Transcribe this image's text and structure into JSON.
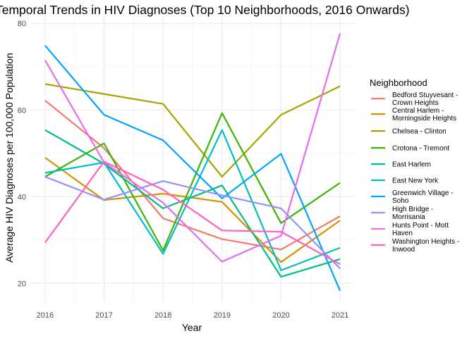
{
  "chart_data": {
    "type": "line",
    "title": "Temporal Trends in HIV Diagnoses (Top 10 Neighborhoods, 2016 Onwards)",
    "xlabel": "Year",
    "ylabel": "Average HIV Diagnoses per 100,000 Population",
    "x": [
      2016,
      2017,
      2018,
      2019,
      2020,
      2021
    ],
    "xlim": [
      2015.75,
      2021.25
    ],
    "ylim": [
      15.5,
      81.5
    ],
    "yticks": [
      20,
      40,
      60,
      80
    ],
    "grid": true,
    "legend_title": "Neighborhood",
    "legend_position": "right",
    "series": [
      {
        "name": "Bedford Stuyvesant - Crown Heights",
        "legend_lines": [
          "Bedford Stuyvesant -",
          "Crown Heights"
        ],
        "color": "#F8766D",
        "values": [
          62.2,
          51.2,
          35.0,
          30.2,
          27.8,
          35.5
        ]
      },
      {
        "name": "Central Harlem - Morningside Heights",
        "legend_lines": [
          "Central Harlem -",
          "Morningside Heights"
        ],
        "color": "#D89000",
        "values": [
          49.0,
          39.2,
          40.7,
          38.8,
          24.9,
          34.5
        ]
      },
      {
        "name": "Chelsea - Clinton",
        "legend_lines": [
          "Chelsea - Clinton"
        ],
        "color": "#A3A500",
        "values": [
          66.0,
          63.7,
          61.4,
          44.6,
          58.9,
          65.5
        ]
      },
      {
        "name": "Crotona - Tremont",
        "legend_lines": [
          "Crotona - Tremont"
        ],
        "color": "#39B600",
        "values": [
          44.6,
          52.3,
          27.6,
          59.3,
          33.9,
          43.2
        ]
      },
      {
        "name": "East Harlem",
        "legend_lines": [
          "East Harlem"
        ],
        "color": "#00BF7D",
        "values": [
          55.4,
          47.6,
          37.3,
          42.6,
          21.5,
          25.6
        ]
      },
      {
        "name": "East New York",
        "legend_lines": [
          "East New York"
        ],
        "color": "#00BFC4",
        "values": [
          45.5,
          47.9,
          26.8,
          55.4,
          23.0,
          28.2
        ]
      },
      {
        "name": "Greenwich Village - Soho",
        "legend_lines": [
          "Greenwich Village -",
          "Soho"
        ],
        "color": "#00A5FF",
        "values": [
          74.9,
          58.9,
          53.0,
          39.6,
          49.9,
          18.3
        ]
      },
      {
        "name": "High Bridge - Morrisania",
        "legend_lines": [
          "High Bridge -",
          "Morrisania"
        ],
        "color": "#9590FF",
        "values": [
          44.6,
          39.3,
          43.6,
          40.3,
          37.3,
          23.4
        ]
      },
      {
        "name": "Hunts Point - Mott Haven",
        "legend_lines": [
          "Hunts Point - Mott",
          "Haven"
        ],
        "color": "#E76BF3",
        "values": [
          71.5,
          47.9,
          38.6,
          25.0,
          31.0,
          77.7
        ]
      },
      {
        "name": "Washington Heights - Inwood",
        "legend_lines": [
          "Washington Heights -",
          "Inwood"
        ],
        "color": "#FF62BC",
        "values": [
          29.4,
          48.1,
          41.6,
          32.2,
          31.9,
          24.4
        ]
      }
    ]
  }
}
